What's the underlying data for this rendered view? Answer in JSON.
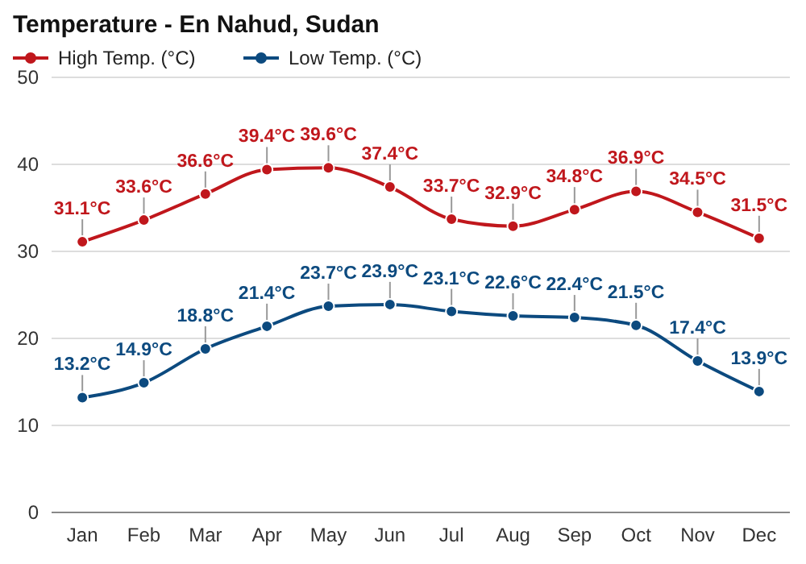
{
  "chart_data": {
    "type": "line",
    "title": "Temperature - En Nahud, Sudan",
    "categories": [
      "Jan",
      "Feb",
      "Mar",
      "Apr",
      "May",
      "Jun",
      "Jul",
      "Aug",
      "Sep",
      "Oct",
      "Nov",
      "Dec"
    ],
    "series": [
      {
        "name": "High Temp. (°C)",
        "color": "#c0171c",
        "values": [
          31.1,
          33.6,
          36.6,
          39.4,
          39.6,
          37.4,
          33.7,
          32.9,
          34.8,
          36.9,
          34.5,
          31.5
        ],
        "value_labels": [
          "31.1°C",
          "33.6°C",
          "36.6°C",
          "39.4°C",
          "39.6°C",
          "37.4°C",
          "33.7°C",
          "32.9°C",
          "34.8°C",
          "36.9°C",
          "34.5°C",
          "31.5°C"
        ]
      },
      {
        "name": "Low Temp. (°C)",
        "color": "#0c4a7f",
        "values": [
          13.2,
          14.9,
          18.8,
          21.4,
          23.7,
          23.9,
          23.1,
          22.6,
          22.4,
          21.5,
          17.4,
          13.9
        ],
        "value_labels": [
          "13.2°C",
          "14.9°C",
          "18.8°C",
          "21.4°C",
          "23.7°C",
          "23.9°C",
          "23.1°C",
          "22.6°C",
          "22.4°C",
          "21.5°C",
          "17.4°C",
          "13.9°C"
        ]
      }
    ],
    "ylim": [
      0,
      50
    ],
    "yticks": [
      0,
      10,
      20,
      30,
      40,
      50
    ],
    "grid": "y",
    "legend": "top left",
    "marker": "circle",
    "line_style": "solid"
  }
}
